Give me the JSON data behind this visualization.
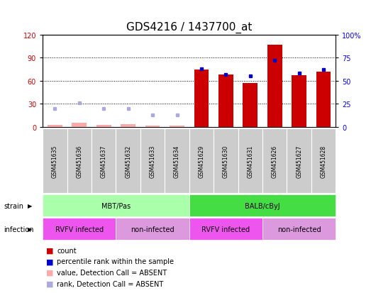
{
  "title": "GDS4216 / 1437700_at",
  "samples": [
    "GSM451635",
    "GSM451636",
    "GSM451637",
    "GSM451632",
    "GSM451633",
    "GSM451634",
    "GSM451629",
    "GSM451630",
    "GSM451631",
    "GSM451626",
    "GSM451627",
    "GSM451628"
  ],
  "count_values": [
    null,
    null,
    null,
    null,
    null,
    null,
    75,
    68,
    57,
    107,
    67,
    72
  ],
  "count_absent": [
    3,
    6,
    3,
    4,
    1.5,
    1.5,
    null,
    null,
    null,
    null,
    null,
    null
  ],
  "percentile_values": [
    null,
    null,
    null,
    null,
    null,
    null,
    63,
    57,
    55,
    72,
    58,
    62
  ],
  "percentile_absent": [
    20,
    26,
    20,
    20,
    13,
    13,
    null,
    null,
    null,
    null,
    null,
    null
  ],
  "strain_groups": [
    {
      "label": "MBT/Pas",
      "start": 0,
      "end": 6,
      "color": "#aaffaa"
    },
    {
      "label": "BALB/cByJ",
      "start": 6,
      "end": 12,
      "color": "#44dd44"
    }
  ],
  "infection_groups": [
    {
      "label": "RVFV infected",
      "start": 0,
      "end": 3,
      "color": "#ee55ee"
    },
    {
      "label": "non-infected",
      "start": 3,
      "end": 6,
      "color": "#dd99dd"
    },
    {
      "label": "RVFV infected",
      "start": 6,
      "end": 9,
      "color": "#ee55ee"
    },
    {
      "label": "non-infected",
      "start": 9,
      "end": 12,
      "color": "#dd99dd"
    }
  ],
  "left_ylim": [
    0,
    120
  ],
  "right_ylim": [
    0,
    100
  ],
  "left_yticks": [
    0,
    30,
    60,
    90,
    120
  ],
  "right_yticks": [
    0,
    25,
    50,
    75,
    100
  ],
  "right_yticklabels": [
    "0",
    "25",
    "50",
    "75",
    "100%"
  ],
  "bar_color": "#cc0000",
  "bar_absent_color": "#ffaaaa",
  "dot_color": "#0000cc",
  "dot_absent_color": "#aaaadd",
  "title_fontsize": 11,
  "tick_fontsize": 7,
  "label_fontsize": 7
}
